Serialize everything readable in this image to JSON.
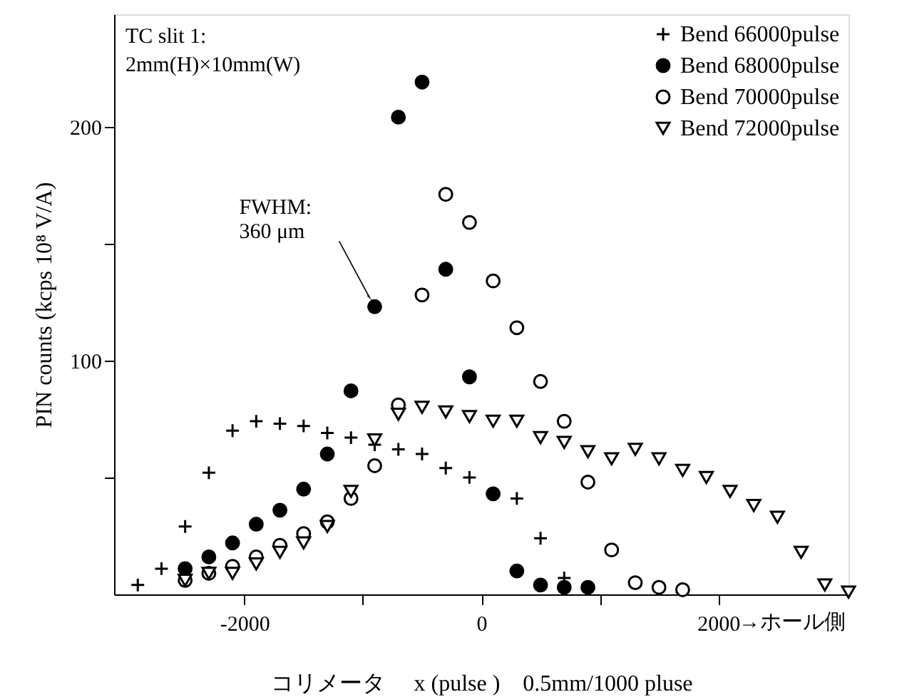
{
  "chart_data": {
    "type": "scatter",
    "xlabel": "コリメータ　 x (pulse )　0.5mm/1000 pluse",
    "ylabel": "PIN counts (kcps 10⁸ V/A)",
    "annotations": [
      "TC slit 1:\n2mm(H)×10mm(W)",
      {
        "text": "FWHM:\n  360 μm",
        "x": -900,
        "y": 123
      },
      "→ホール側"
    ],
    "xlim": [
      -3100,
      3100
    ],
    "ylim": [
      0,
      248
    ],
    "xticks": [
      -2000,
      {
        "value": -1000,
        "label": null
      },
      0,
      {
        "value": 1000,
        "label": null
      },
      2000
    ],
    "yticks": [
      {
        "value": 50,
        "label": null
      },
      100,
      {
        "value": 150,
        "label": null
      },
      200
    ],
    "grid": false,
    "legend": "top right",
    "series": [
      {
        "name": "Bend 66000pulse",
        "color": "#000000",
        "marker": "cross",
        "x": [
          -2900,
          -2700,
          -2500,
          -2300,
          -2100,
          -1900,
          -1700,
          -1500,
          -1300,
          -1100,
          -900,
          -700,
          -500,
          -300,
          -100,
          300,
          500,
          700
        ],
        "values": [
          4,
          11,
          29,
          52,
          70,
          74,
          73,
          72,
          69,
          67,
          64,
          62,
          60,
          54,
          50,
          41,
          24,
          7
        ]
      },
      {
        "name": "Bend 68000pulse",
        "color": "#000000",
        "marker": "circle",
        "x": [
          -2500,
          -2300,
          -2100,
          -1900,
          -1700,
          -1500,
          -1300,
          -1100,
          -900,
          -700,
          -500,
          -300,
          -100,
          100,
          300,
          500,
          700,
          900
        ],
        "values": [
          11,
          16,
          22,
          30,
          36,
          45,
          60,
          87,
          123,
          204,
          219,
          139,
          93,
          43,
          10,
          4,
          3,
          3
        ]
      },
      {
        "name": "Bend 70000pulse",
        "color": "#000000",
        "marker": "circle",
        "x": [
          -2500,
          -2300,
          -2100,
          -1900,
          -1700,
          -1500,
          -1300,
          -1100,
          -900,
          -700,
          -500,
          -300,
          -100,
          100,
          300,
          500,
          700,
          900,
          1100,
          1300,
          1500,
          1700
        ],
        "values": [
          6,
          9,
          12,
          16,
          21,
          26,
          31,
          41,
          55,
          81,
          128,
          171,
          159,
          134,
          114,
          91,
          74,
          48,
          19,
          5,
          3,
          2
        ]
      },
      {
        "name": "Bend 72000pulse",
        "color": "#000000",
        "marker": "triangle",
        "x": [
          -2500,
          -2300,
          -2100,
          -1900,
          -1700,
          -1500,
          -1300,
          -1100,
          -900,
          -700,
          -500,
          -300,
          -100,
          100,
          300,
          500,
          700,
          900,
          1100,
          1300,
          1500,
          1700,
          1900,
          2100,
          2300,
          2500,
          2700,
          2900,
          3100
        ],
        "values": [
          6,
          9,
          9,
          13,
          18,
          22,
          29,
          44,
          66,
          77,
          80,
          78,
          76,
          74,
          74,
          67,
          65,
          61,
          58,
          62,
          58,
          53,
          50,
          44,
          38,
          33,
          18,
          4,
          1
        ]
      }
    ]
  }
}
